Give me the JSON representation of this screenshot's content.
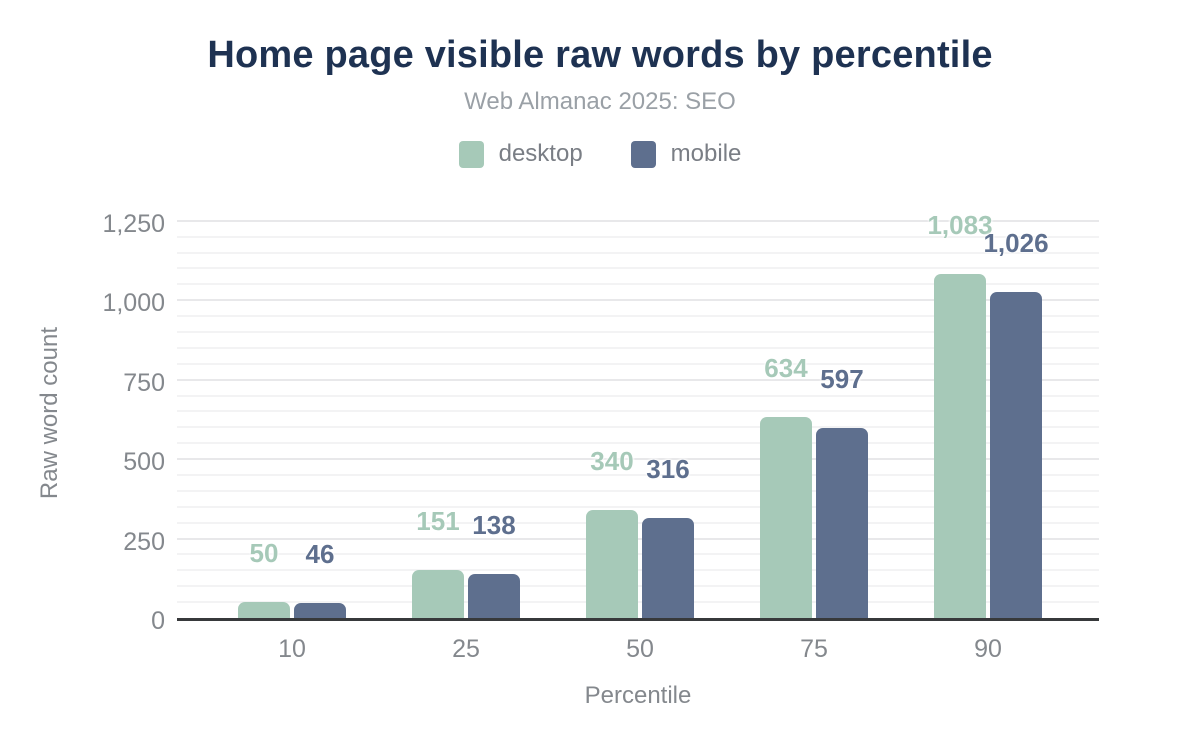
{
  "header": {
    "title": "Home page visible raw words by percentile",
    "subtitle": "Web Almanac 2025: SEO"
  },
  "colors": {
    "title": "#1e3252",
    "desktop": "#a6c9b8",
    "mobile": "#5e6f8e",
    "axis_line": "#37393b",
    "tick_text": "#84888d",
    "gridline_major": "#e8e8ea",
    "gridline_minor": "#f3f3f4"
  },
  "chart_data": {
    "type": "bar",
    "title": "Home page visible raw words by percentile",
    "subtitle": "Web Almanac 2025: SEO",
    "categories": [
      "10",
      "25",
      "50",
      "75",
      "90"
    ],
    "xlabel": "Percentile",
    "ylabel": "Raw word count",
    "ylim": [
      0,
      1306
    ],
    "grid": true,
    "legend_position": "top",
    "y_ticks": [
      {
        "value": 0,
        "label": "0"
      },
      {
        "value": 250,
        "label": "250"
      },
      {
        "value": 500,
        "label": "500"
      },
      {
        "value": 750,
        "label": "750"
      },
      {
        "value": 1000,
        "label": "1,000"
      },
      {
        "value": 1250,
        "label": "1,250"
      }
    ],
    "minor_grid_step": 50,
    "major_grid_step": 250,
    "series": [
      {
        "name": "desktop",
        "color": "#a6c9b8",
        "values": [
          50,
          151,
          340,
          634,
          1083
        ],
        "labels": [
          "50",
          "151",
          "340",
          "634",
          "1,083"
        ]
      },
      {
        "name": "mobile",
        "color": "#5e6f8e",
        "values": [
          46,
          138,
          316,
          597,
          1026
        ],
        "labels": [
          "46",
          "138",
          "316",
          "597",
          "1,026"
        ]
      }
    ]
  }
}
